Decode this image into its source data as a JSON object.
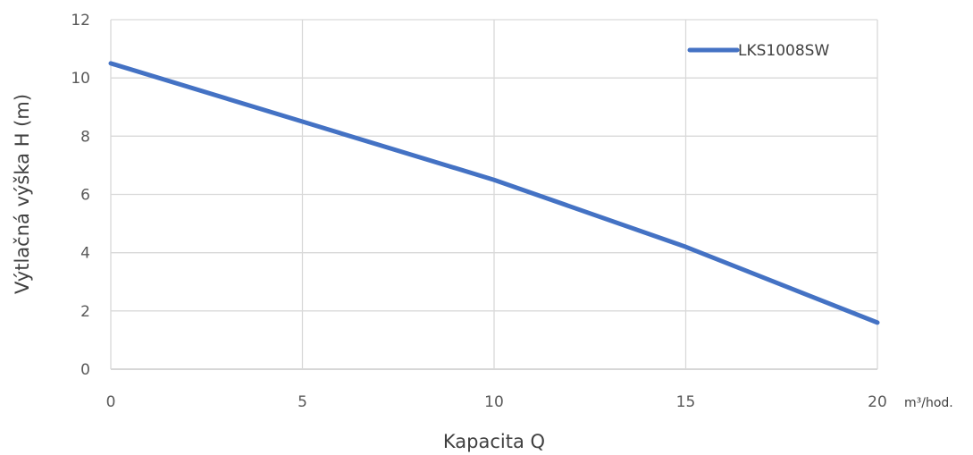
{
  "chart_data": {
    "type": "line",
    "xlabel": "Kapacita Q",
    "ylabel": "Výtlačná výška H (m)",
    "x_unit": "m³/hod.",
    "xlim": [
      0,
      20
    ],
    "ylim": [
      0,
      12
    ],
    "x_ticks": [
      0,
      5,
      10,
      15,
      20
    ],
    "y_ticks": [
      0,
      2,
      4,
      6,
      8,
      10,
      12
    ],
    "grid": true,
    "legend_position": "top-right",
    "series": [
      {
        "name": "LKS1008SW",
        "color": "#4472C4",
        "x": [
          0,
          5,
          10,
          15,
          20
        ],
        "y": [
          10.5,
          8.5,
          6.5,
          4.2,
          1.6
        ]
      }
    ]
  }
}
